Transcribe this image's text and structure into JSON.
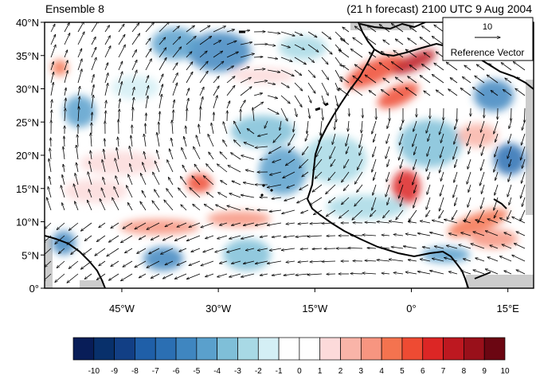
{
  "header": {
    "left_title": "Ensemble 8",
    "right_title": "(21 h forecast) 2100 UTC 9 Aug 2004"
  },
  "map": {
    "lat_labels": [
      "40°N",
      "35°N",
      "30°N",
      "25°N",
      "20°N",
      "15°N",
      "10°N",
      "5°N",
      "0°"
    ],
    "lon_labels": [
      "45°W",
      "30°W",
      "15°W",
      "0°",
      "15°E"
    ],
    "lat_values": [
      40,
      35,
      30,
      25,
      20,
      15,
      10,
      5,
      0
    ],
    "lon_values": [
      -45,
      -30,
      -15,
      0,
      15
    ],
    "lon_range": [
      -57,
      19
    ],
    "lat_range": [
      0,
      40
    ],
    "land_mask_color": "#cccccc",
    "coastline_color": "#000000"
  },
  "reference_vector": {
    "magnitude_label": "10",
    "label": "Reference Vector"
  },
  "colorbar": {
    "labels": [
      "-10",
      "-9",
      "-8",
      "-7",
      "-6",
      "-5",
      "-4",
      "-3",
      "-2",
      "-1",
      "0",
      "1",
      "2",
      "3",
      "4",
      "5",
      "6",
      "7",
      "8",
      "9",
      "10"
    ],
    "colors": [
      "#081d58",
      "#08306b",
      "#123f85",
      "#1f5fa8",
      "#2b6fb3",
      "#3f86c0",
      "#5aa0cc",
      "#7fbfd8",
      "#a8d9e5",
      "#d4eff5",
      "#ffffff",
      "#ffffff",
      "#fcdada",
      "#f9b4a8",
      "#f79580",
      "#f4734f",
      "#ee4b33",
      "#dc2625",
      "#bd1820",
      "#99101a",
      "#6b0612"
    ]
  }
}
